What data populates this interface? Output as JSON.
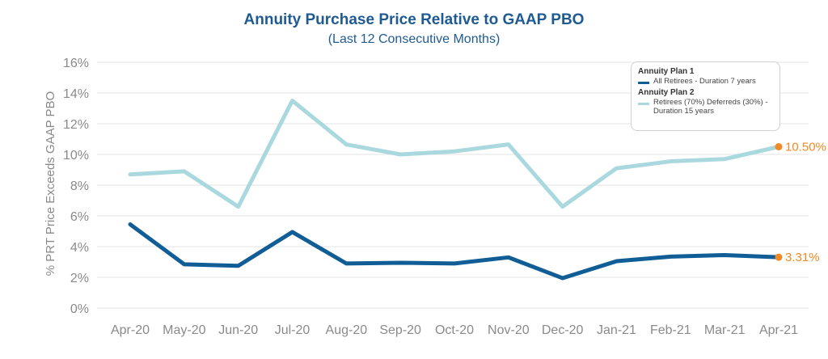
{
  "chart_data": {
    "type": "line",
    "title": "Annuity Purchase Price Relative to GAAP PBO",
    "subtitle": "(Last 12 Consecutive Months)",
    "xlabel": "",
    "ylabel": "% PRT Price Exceeds GAAP PBO",
    "categories": [
      "Apr-20",
      "May-20",
      "Jun-20",
      "Jul-20",
      "Aug-20",
      "Sep-20",
      "Oct-20",
      "Nov-20",
      "Dec-20",
      "Jan-21",
      "Feb-21",
      "Mar-21",
      "Apr-21"
    ],
    "ylim": [
      0,
      16
    ],
    "yticks": [
      0,
      2,
      4,
      6,
      8,
      10,
      12,
      14,
      16
    ],
    "ytick_labels": [
      "0%",
      "2%",
      "4%",
      "6%",
      "8%",
      "10%",
      "12%",
      "14%",
      "16%"
    ],
    "grid": true,
    "legend_position": "top-right",
    "series": [
      {
        "name": "Annuity Plan 2",
        "group_label": "Annuity Plan 2",
        "description": "Retirees (70%) Deferreds (30%) - Duration 15 years",
        "color": "#aad8df",
        "values": [
          8.7,
          8.9,
          6.6,
          13.5,
          10.65,
          10.0,
          10.2,
          10.65,
          6.6,
          9.1,
          9.55,
          9.7,
          10.5
        ],
        "end_label": "10.50%"
      },
      {
        "name": "Annuity Plan 1",
        "group_label": "Annuity Plan 1",
        "description": "All Retirees - Duration 7 years",
        "color": "#115d96",
        "values": [
          5.45,
          2.85,
          2.75,
          4.95,
          2.9,
          2.95,
          2.9,
          3.3,
          1.95,
          3.05,
          3.35,
          3.45,
          3.31
        ],
        "end_label": "3.31%"
      }
    ],
    "end_marker_color": "#f08a24"
  }
}
